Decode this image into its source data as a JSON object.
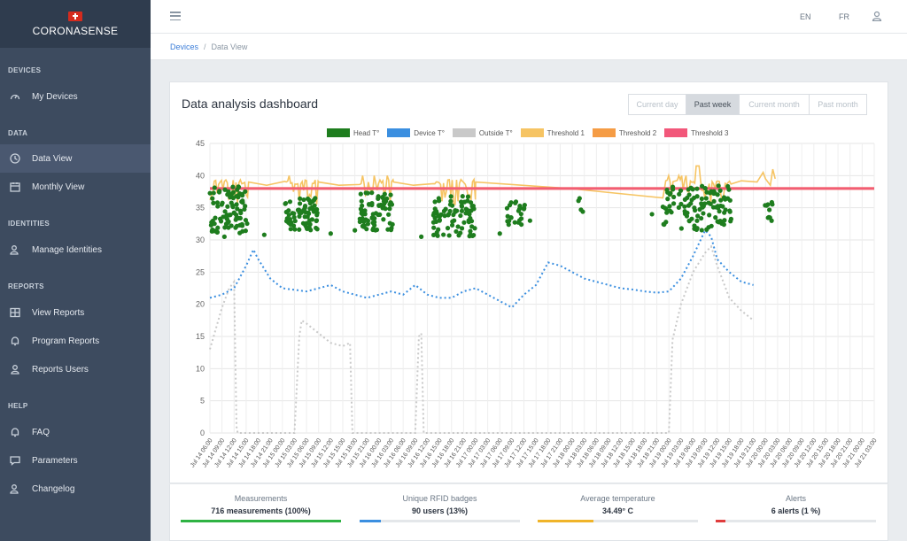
{
  "app": {
    "name": "CORONASENSE"
  },
  "sidebar": {
    "sections": [
      {
        "title": "DEVICES",
        "items": [
          {
            "label": "My Devices",
            "icon": "gauge-icon"
          }
        ]
      },
      {
        "title": "DATA",
        "items": [
          {
            "label": "Data View",
            "icon": "clock-icon",
            "active": true
          },
          {
            "label": "Monthly View",
            "icon": "calendar-icon"
          }
        ]
      },
      {
        "title": "IDENTITIES",
        "items": [
          {
            "label": "Manage Identities",
            "icon": "users-icon"
          }
        ]
      },
      {
        "title": "REPORTS",
        "items": [
          {
            "label": "View Reports",
            "icon": "grid-icon"
          },
          {
            "label": "Program Reports",
            "icon": "bell-icon"
          },
          {
            "label": "Reports Users",
            "icon": "user-icon"
          }
        ]
      },
      {
        "title": "HELP",
        "items": [
          {
            "label": "FAQ",
            "icon": "bell-icon"
          },
          {
            "label": "Parameters",
            "icon": "chat-icon"
          },
          {
            "label": "Changelog",
            "icon": "users-icon"
          }
        ]
      }
    ]
  },
  "topbar": {
    "lang_en": "EN",
    "lang_fr": "FR"
  },
  "breadcrumb": {
    "root": "Devices",
    "separator": "/",
    "current": "Data View"
  },
  "dashboard": {
    "title": "Data analysis dashboard",
    "ranges": [
      "Current day",
      "Past week",
      "Current month",
      "Past month"
    ],
    "active_range": "Past week"
  },
  "stats": [
    {
      "label": "Measurements",
      "value": "716 measurements (100%)",
      "color": "#2fb344",
      "fraction": 1.0
    },
    {
      "label": "Unique RFID badges",
      "value": "90 users (13%)",
      "color": "#3b8fe0",
      "fraction": 0.13
    },
    {
      "label": "Average temperature",
      "value": "34.49° C",
      "color": "#f0b429",
      "fraction": 0.35
    },
    {
      "label": "Alerts",
      "value": "6 alerts (1 %)",
      "color": "#e03c3c",
      "fraction": 0.06
    }
  ],
  "chart_data": {
    "type": "line",
    "ylim": [
      0,
      45
    ],
    "yticks": [
      0,
      5,
      10,
      15,
      20,
      25,
      30,
      35,
      40,
      45
    ],
    "grid": true,
    "legend_position": "top",
    "x_labels": [
      "Jul 14 06:00",
      "Jul 14 09:00",
      "Jul 14 12:00",
      "Jul 14 15:00",
      "Jul 14 18:00",
      "Jul 14 21:00",
      "Jul 15 00:00",
      "Jul 15 03:00",
      "Jul 15 06:00",
      "Jul 15 09:00",
      "Jul 15 12:00",
      "Jul 15 15:00",
      "Jul 15 18:00",
      "Jul 15 21:00",
      "Jul 16 00:00",
      "Jul 16 03:00",
      "Jul 16 06:00",
      "Jul 16 09:00",
      "Jul 16 12:00",
      "Jul 16 15:00",
      "Jul 16 18:00",
      "Jul 16 21:00",
      "Jul 17 00:00",
      "Jul 17 03:00",
      "Jul 17 06:00",
      "Jul 17 09:00",
      "Jul 17 12:00",
      "Jul 17 15:00",
      "Jul 17 18:00",
      "Jul 17 21:00",
      "Jul 18 00:00",
      "Jul 18 03:00",
      "Jul 18 06:00",
      "Jul 18 09:00",
      "Jul 18 12:00",
      "Jul 18 15:00",
      "Jul 18 18:00",
      "Jul 18 21:00",
      "Jul 19 00:00",
      "Jul 19 03:00",
      "Jul 19 06:00",
      "Jul 19 09:00",
      "Jul 19 12:00",
      "Jul 19 15:00",
      "Jul 19 18:00",
      "Jul 19 21:00",
      "Jul 20 00:00",
      "Jul 20 03:00",
      "Jul 20 06:00",
      "Jul 20 09:00",
      "Jul 20 12:00",
      "Jul 20 15:00",
      "Jul 20 18:00",
      "Jul 20 21:00",
      "Jul 21 00:00",
      "Jul 21 03:00"
    ],
    "series": [
      {
        "name": "Head T°",
        "color": "#1e7d1e",
        "style": "points",
        "clusters": [
          {
            "x": [
              0,
              3.1
            ],
            "ymin": 31,
            "ymax": 38.5,
            "n": 90
          },
          {
            "x": [
              6.2,
              8.9
            ],
            "ymin": 31.5,
            "ymax": 36.5,
            "n": 70
          },
          {
            "x": [
              12.4,
              15.2
            ],
            "ymin": 31.5,
            "ymax": 37.5,
            "n": 70
          },
          {
            "x": [
              18.5,
              22
            ],
            "ymin": 30.5,
            "ymax": 37,
            "n": 80
          },
          {
            "x": [
              24.6,
              26.2
            ],
            "ymin": 32,
            "ymax": 36,
            "n": 25
          },
          {
            "x": [
              30.4,
              30.9
            ],
            "ymin": 34,
            "ymax": 36.5,
            "n": 4
          },
          {
            "x": [
              37.5,
              43.2
            ],
            "ymin": 31.5,
            "ymax": 38.5,
            "n": 110
          },
          {
            "x": [
              45.8,
              46.6
            ],
            "ymin": 32.5,
            "ymax": 36,
            "n": 10
          }
        ]
      },
      {
        "name": "Device T°",
        "color": "#3b8fe0",
        "style": "dotted",
        "points": [
          [
            0,
            21
          ],
          [
            1,
            21.5
          ],
          [
            2,
            22.5
          ],
          [
            3,
            26
          ],
          [
            3.6,
            28.5
          ],
          [
            4,
            27
          ],
          [
            5,
            24
          ],
          [
            6,
            22.5
          ],
          [
            8,
            22
          ],
          [
            9,
            22.5
          ],
          [
            10,
            23
          ],
          [
            11,
            22
          ],
          [
            12,
            21.5
          ],
          [
            13,
            21
          ],
          [
            14,
            21.5
          ],
          [
            15,
            22
          ],
          [
            16,
            21.5
          ],
          [
            17,
            23
          ],
          [
            18,
            21.5
          ],
          [
            19,
            21
          ],
          [
            20,
            21
          ],
          [
            21,
            22
          ],
          [
            22,
            22.5
          ],
          [
            23,
            21.5
          ],
          [
            24,
            20.5
          ],
          [
            25,
            19.5
          ],
          [
            26,
            21.5
          ],
          [
            27,
            23
          ],
          [
            28,
            26.5
          ],
          [
            29,
            26
          ],
          [
            30,
            25
          ],
          [
            31,
            24
          ],
          [
            32,
            23.5
          ],
          [
            33,
            23
          ],
          [
            34,
            22.5
          ],
          [
            35,
            22.3
          ],
          [
            36,
            22
          ],
          [
            37,
            21.8
          ],
          [
            38,
            22
          ],
          [
            39,
            24
          ],
          [
            40,
            27.5
          ],
          [
            41,
            31.5
          ],
          [
            41.5,
            30.5
          ],
          [
            42,
            27
          ],
          [
            43,
            25
          ],
          [
            44,
            23.5
          ],
          [
            45,
            23
          ]
        ]
      },
      {
        "name": "Outside T°",
        "color": "#c9c9c9",
        "style": "dotted",
        "points": [
          [
            0,
            13
          ],
          [
            1,
            19.5
          ],
          [
            1.6,
            22.5
          ],
          [
            2,
            23.5
          ],
          [
            2.2,
            1
          ],
          [
            2.3,
            0
          ],
          [
            7,
            0
          ],
          [
            7.4,
            15
          ],
          [
            7.6,
            17.5
          ],
          [
            8,
            17
          ],
          [
            9,
            15.5
          ],
          [
            10,
            14
          ],
          [
            11,
            13.5
          ],
          [
            11.6,
            14
          ],
          [
            11.8,
            0
          ],
          [
            17,
            0
          ],
          [
            17.3,
            15
          ],
          [
            17.5,
            15.5
          ],
          [
            17.7,
            0
          ],
          [
            38,
            0
          ],
          [
            38.3,
            14.5
          ],
          [
            39,
            20
          ],
          [
            40,
            25
          ],
          [
            41,
            28
          ],
          [
            41.5,
            29
          ],
          [
            42,
            26
          ],
          [
            43,
            21
          ],
          [
            44,
            19
          ],
          [
            45,
            17.5
          ]
        ]
      },
      {
        "name": "Threshold 1",
        "color": "#f6c463",
        "style": "line",
        "base": 39,
        "noise_min": 35.5,
        "noise_max": 40,
        "segments": [
          [
            0,
            3.2
          ],
          [
            6.2,
            9
          ],
          [
            12.4,
            15.2
          ],
          [
            18.5,
            22
          ],
          [
            37.5,
            43.2
          ]
        ],
        "flat_value": 38,
        "extra_peak": 41.5
      },
      {
        "name": "Threshold 2",
        "color": "#f59c45",
        "style": "line",
        "value": 38
      },
      {
        "name": "Threshold 3",
        "color": "#f2577a",
        "style": "line",
        "value": 38
      }
    ]
  }
}
